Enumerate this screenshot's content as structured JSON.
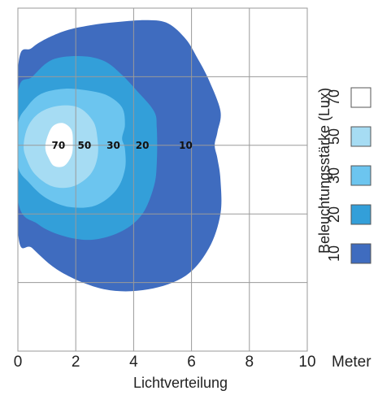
{
  "chart_data": {
    "type": "contour",
    "xlabel": "Lichtverteilung",
    "x_unit": "Meter",
    "xlim": [
      0,
      10
    ],
    "ylim": [
      -6,
      4
    ],
    "x_ticks": [
      "0",
      "2",
      "4",
      "6",
      "8",
      "10"
    ],
    "grid": true,
    "legend": {
      "title": "Beleuchtungsstärke (Lux)",
      "placement": "right",
      "entries": [
        {
          "label": "70",
          "color": "#ffffff"
        },
        {
          "label": "50",
          "color": "#a6dcf3"
        },
        {
          "label": "30",
          "color": "#6cc5ef"
        },
        {
          "label": "20",
          "color": "#339fd9"
        },
        {
          "label": "10",
          "color": "#3f6cbf"
        }
      ]
    },
    "zones": [
      {
        "lux": "10",
        "label": "10",
        "label_at": [
          5.8,
          0
        ],
        "color": "#3f6cbf",
        "boundary": [
          [
            0,
            2.2
          ],
          [
            0.5,
            2.85
          ],
          [
            1.5,
            3.3
          ],
          [
            2.5,
            3.5
          ],
          [
            3.5,
            3.6
          ],
          [
            4.5,
            3.65
          ],
          [
            5.2,
            3.55
          ],
          [
            5.8,
            3.1
          ],
          [
            6.2,
            2.55
          ],
          [
            6.6,
            1.9
          ],
          [
            7.0,
            1.0
          ],
          [
            6.9,
            0.4
          ],
          [
            6.8,
            0
          ],
          [
            6.9,
            -0.4
          ],
          [
            7.0,
            -1.0
          ],
          [
            7.0,
            -2.0
          ],
          [
            6.6,
            -3.0
          ],
          [
            5.8,
            -3.8
          ],
          [
            4.5,
            -4.2
          ],
          [
            3.0,
            -4.2
          ],
          [
            1.5,
            -3.7
          ],
          [
            0.5,
            -3.0
          ],
          [
            0,
            -2.5
          ]
        ]
      },
      {
        "lux": "20",
        "label": "20",
        "label_at": [
          4.3,
          0
        ],
        "color": "#339fd9",
        "boundary": [
          [
            0,
            1.5
          ],
          [
            0.5,
            2.0
          ],
          [
            1.2,
            2.5
          ],
          [
            2.2,
            2.6
          ],
          [
            3.0,
            2.45
          ],
          [
            3.6,
            2.05
          ],
          [
            4.1,
            1.6
          ],
          [
            4.7,
            1.0
          ],
          [
            4.8,
            0.5
          ],
          [
            4.8,
            -0.5
          ],
          [
            4.7,
            -1.2
          ],
          [
            4.3,
            -2.0
          ],
          [
            3.6,
            -2.5
          ],
          [
            2.6,
            -2.75
          ],
          [
            1.6,
            -2.65
          ],
          [
            0.7,
            -2.3
          ],
          [
            0,
            -1.6
          ]
        ]
      },
      {
        "lux": "30",
        "label": "30",
        "label_at": [
          3.3,
          0
        ],
        "color": "#6cc5ef",
        "boundary": [
          [
            0,
            0.6
          ],
          [
            0.3,
            1.1
          ],
          [
            0.8,
            1.5
          ],
          [
            1.6,
            1.65
          ],
          [
            2.4,
            1.6
          ],
          [
            3.1,
            1.45
          ],
          [
            3.6,
            1.1
          ],
          [
            3.7,
            0.6
          ],
          [
            3.6,
            0.2
          ],
          [
            3.7,
            -0.1
          ],
          [
            3.7,
            -0.7
          ],
          [
            3.4,
            -1.3
          ],
          [
            2.7,
            -1.75
          ],
          [
            1.8,
            -1.8
          ],
          [
            1.0,
            -1.55
          ],
          [
            0.4,
            -1.1
          ],
          [
            0,
            -0.6
          ]
        ]
      },
      {
        "lux": "50",
        "label": "50",
        "label_at": [
          2.3,
          0
        ],
        "color": "#a6dcf3",
        "boundary": [
          [
            0.2,
            0
          ],
          [
            0.35,
            0.55
          ],
          [
            0.75,
            0.95
          ],
          [
            1.4,
            1.15
          ],
          [
            2.1,
            1.1
          ],
          [
            2.6,
            0.7
          ],
          [
            2.75,
            0.2
          ],
          [
            2.75,
            -0.35
          ],
          [
            2.5,
            -0.85
          ],
          [
            1.9,
            -1.2
          ],
          [
            1.2,
            -1.2
          ],
          [
            0.6,
            -0.85
          ],
          [
            0.3,
            -0.4
          ]
        ]
      },
      {
        "lux": "70",
        "label": "70",
        "label_at": [
          1.4,
          0
        ],
        "color": "#ffffff",
        "boundary": [
          [
            1.0,
            0.2
          ],
          [
            1.2,
            0.55
          ],
          [
            1.55,
            0.65
          ],
          [
            1.85,
            0.45
          ],
          [
            1.9,
            0.05
          ],
          [
            1.85,
            -0.3
          ],
          [
            1.6,
            -0.6
          ],
          [
            1.25,
            -0.6
          ],
          [
            1.05,
            -0.35
          ],
          [
            0.95,
            -0.1
          ]
        ]
      }
    ]
  }
}
